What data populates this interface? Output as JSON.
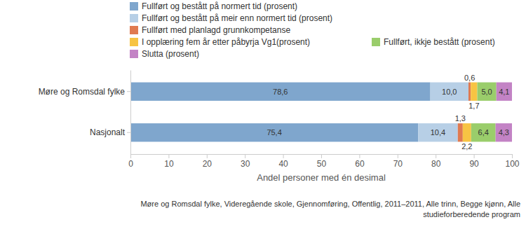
{
  "chart_data": {
    "type": "bar",
    "orientation": "horizontal",
    "stacked": true,
    "data_labels": true,
    "grid": false,
    "legend": "top",
    "categories": [
      "Møre og Romsdal fylke",
      "Nasjonalt"
    ],
    "series": [
      {
        "name": "Fullført og bestått på normert tid (prosent)",
        "color": "#7fa6cd",
        "values": [
          78.6,
          75.4
        ],
        "value_labels": [
          "78,6",
          "75,4"
        ]
      },
      {
        "name": "Fullført og bestått på meir enn normert tid (prosent)",
        "color": "#b7cfe6",
        "values": [
          10.0,
          10.4
        ],
        "value_labels": [
          "10,0",
          "10,4"
        ]
      },
      {
        "name": "Fullført med planlagd grunnkompetanse",
        "color": "#e07a50",
        "values": [
          0.6,
          1.3
        ],
        "value_labels": [
          "0,6",
          "1,3"
        ]
      },
      {
        "name": "I opplæring fem år etter påbyrja Vg1(prosent)",
        "color": "#f7c443",
        "values": [
          1.7,
          2.2
        ],
        "value_labels": [
          "1,7",
          "2,2"
        ]
      },
      {
        "name": "Fullført, ikkje bestått (prosent)",
        "color": "#9acd6b",
        "values": [
          5.0,
          6.4
        ],
        "value_labels": [
          "5,0",
          "6,4"
        ]
      },
      {
        "name": "Slutta (prosent)",
        "color": "#c383c5",
        "values": [
          4.1,
          4.3
        ],
        "value_labels": [
          "4,1",
          "4,3"
        ]
      }
    ],
    "x_label": "Andel personer med én desimal",
    "xlim": [
      0,
      100
    ],
    "xticks": [
      0,
      10,
      20,
      30,
      40,
      50,
      60,
      70,
      80,
      90,
      100
    ],
    "caption": [
      "Møre og Romsdal fylke, Videregående skole, Gjennomføring, Offentlig, 2011–2011, Alle trinn, Begge kjønn, Alle",
      "studieforberedende program"
    ]
  }
}
